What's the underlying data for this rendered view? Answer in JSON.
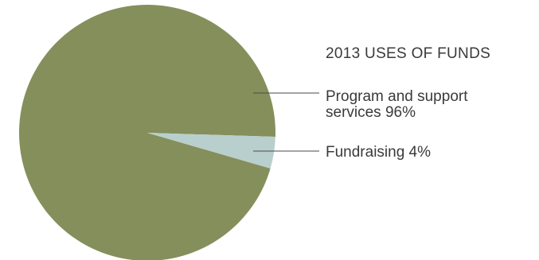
{
  "chart_data": {
    "type": "pie",
    "title": "2013 USES OF FUNDS",
    "slices": [
      {
        "name": "Program and support services",
        "value": 96,
        "label_lines": [
          "Program and support",
          "services 96%"
        ],
        "color": "#858f5b"
      },
      {
        "name": "Fundraising",
        "value": 4,
        "label_lines": [
          "Fundraising 4%"
        ],
        "color": "#b9cfcd"
      }
    ],
    "unit": "%",
    "legend": "right"
  }
}
